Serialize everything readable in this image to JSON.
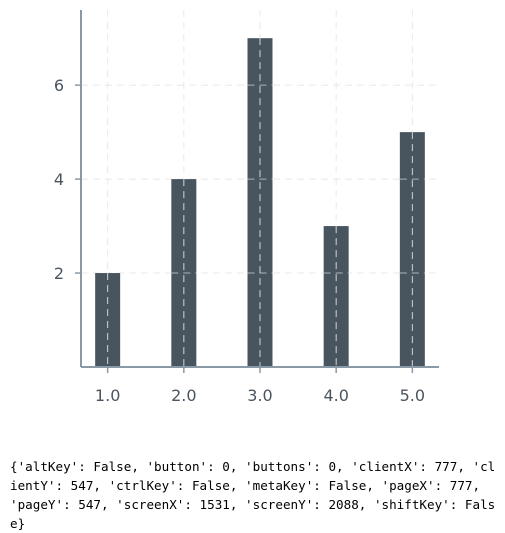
{
  "chart_data": {
    "type": "bar",
    "categories": [
      "1.0",
      "2.0",
      "3.0",
      "4.0",
      "5.0"
    ],
    "x": [
      1.0,
      2.0,
      3.0,
      4.0,
      5.0
    ],
    "values": [
      2,
      4,
      7,
      3,
      5
    ],
    "title": "",
    "xlabel": "",
    "ylabel": "",
    "xlim": [
      0.65,
      5.35
    ],
    "ylim": [
      0,
      7.6
    ],
    "yticks": [
      2,
      4,
      6
    ],
    "ytick_labels": [
      "2",
      "4",
      "6"
    ],
    "xtick_labels": [
      "1.0",
      "2.0",
      "3.0",
      "4.0",
      "5.0"
    ],
    "grid": true,
    "legend": "none",
    "bar_color": "#48555f",
    "axis_color": "#8a99a6",
    "grid_color": "#e8e8e8"
  },
  "event_log": {
    "text": "{'altKey': False, 'button': 0, 'buttons': 0, 'clientX': 777, 'clientY': 547, 'ctrlKey': False, 'metaKey': False, 'pageX': 777, 'pageY': 547, 'screenX': 1531, 'screenY': 2088, 'shiftKey': False}"
  }
}
